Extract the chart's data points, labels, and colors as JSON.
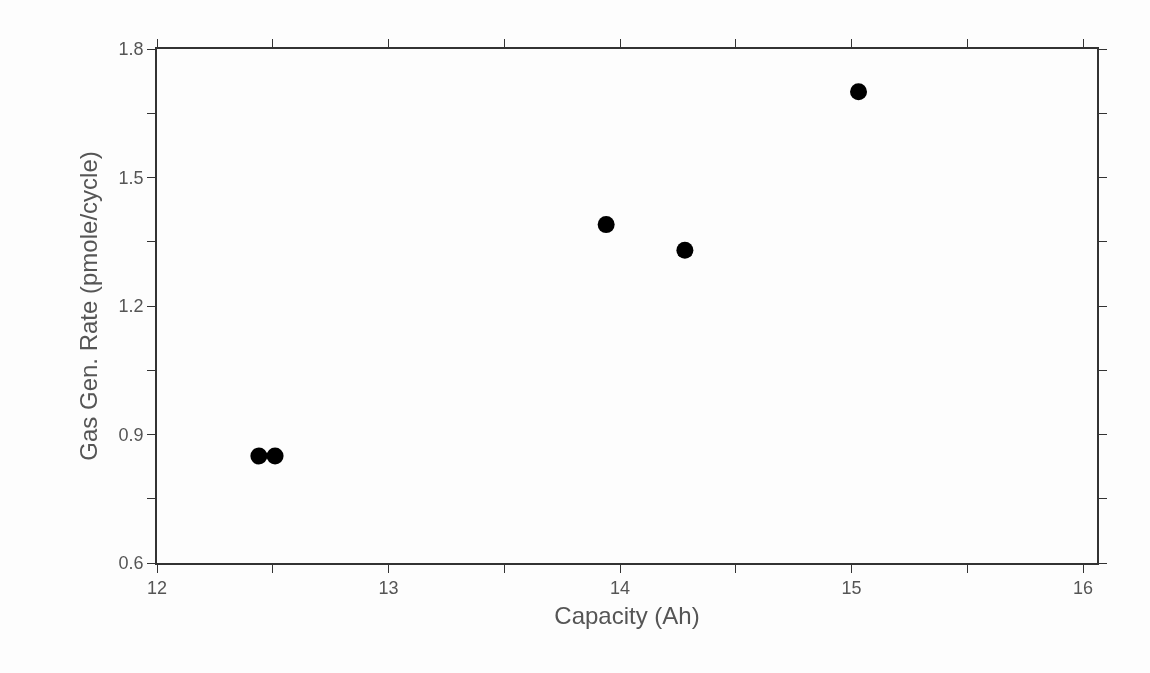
{
  "chart_data": {
    "type": "scatter",
    "xlabel": "Capacity (Ah)",
    "ylabel": "Gas Gen. Rate (pmole/cycle)",
    "x": [
      12.44,
      12.51,
      13.94,
      14.28,
      15.03
    ],
    "values": [
      0.85,
      0.85,
      1.39,
      1.33,
      1.7
    ],
    "color": "#000000",
    "marker": "circle",
    "grid": false,
    "xlim": [
      12,
      16.06
    ],
    "xticks": [
      12,
      {
        "value": 12.5,
        "label": null
      },
      13,
      {
        "value": 13.5,
        "label": null
      },
      14,
      {
        "value": 14.5,
        "label": null
      },
      15,
      {
        "value": 15.5,
        "label": null
      },
      16
    ],
    "ylim": [
      0.6,
      1.8
    ],
    "yticks": [
      0.6,
      {
        "value": 0.75,
        "label": null
      },
      0.9,
      {
        "value": 1.05,
        "label": null
      },
      1.2,
      {
        "value": 1.35,
        "label": null
      },
      1.5,
      {
        "value": 1.65,
        "label": null
      },
      1.8
    ]
  }
}
